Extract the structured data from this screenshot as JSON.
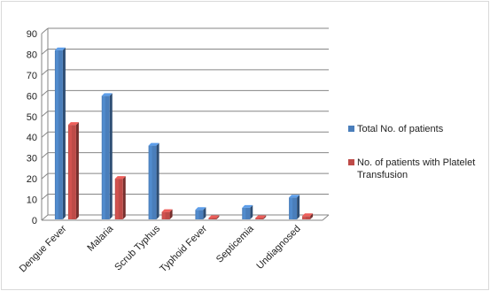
{
  "chart_data": {
    "type": "bar",
    "categories": [
      "Dengue Fever",
      "Malaria",
      "Scrub Typhus",
      "Typhoid Fever",
      "Septicemia",
      "Undiagnosed"
    ],
    "series": [
      {
        "name": "Total No. of patients",
        "values": [
          82,
          60,
          36,
          5,
          6,
          11
        ],
        "color": "#4a7ebb"
      },
      {
        "name": "No. of patients with Platelet Transfusion",
        "values": [
          46,
          20,
          4,
          0,
          0,
          2
        ],
        "color": "#be4b48"
      }
    ],
    "ylim": [
      0,
      90
    ],
    "yticks": [
      0,
      10,
      20,
      30,
      40,
      50,
      60,
      70,
      80,
      90
    ],
    "grid": true,
    "legend_position": "right",
    "style": "3d-clustered-column"
  }
}
